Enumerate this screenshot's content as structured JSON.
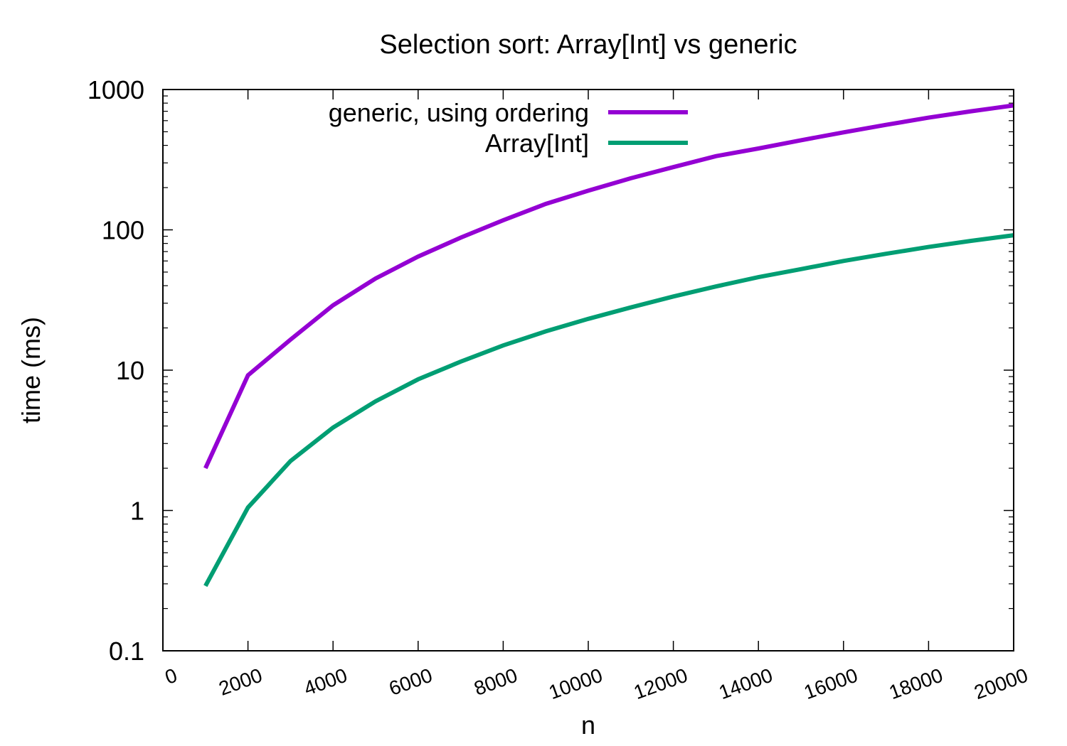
{
  "chart_data": {
    "type": "line",
    "title": "Selection sort: Array[Int] vs generic",
    "xlabel": "n",
    "ylabel": "time (ms)",
    "xlim": [
      0,
      20000
    ],
    "ylim": [
      0.1,
      1000
    ],
    "yscale": "log",
    "grid": false,
    "legend_position": "top-center",
    "xticks": [
      "0",
      "2000",
      "4000",
      "6000",
      "8000",
      "10000",
      "12000",
      "14000",
      "16000",
      "18000",
      "20000"
    ],
    "yticks": [
      "0.1",
      "1",
      "10",
      "100",
      "1000"
    ],
    "series": [
      {
        "name": "generic, using ordering",
        "color": "#9400d3",
        "x": [
          1000,
          2000,
          3000,
          4000,
          5000,
          6000,
          7000,
          8000,
          9000,
          10000,
          11000,
          12000,
          13000,
          14000,
          15000,
          16000,
          17000,
          18000,
          19000,
          20000
        ],
        "y": [
          2.0,
          9.2,
          16.5,
          29.0,
          45.0,
          64.5,
          88.0,
          117,
          153,
          190,
          233,
          280,
          335,
          380,
          435,
          495,
          560,
          630,
          700,
          770
        ]
      },
      {
        "name": "Array[Int]",
        "color": "#009e73",
        "x": [
          1000,
          2000,
          3000,
          4000,
          5000,
          6000,
          7000,
          8000,
          9000,
          10000,
          11000,
          12000,
          13000,
          14000,
          15000,
          16000,
          17000,
          18000,
          19000,
          20000
        ],
        "y": [
          0.29,
          1.05,
          2.25,
          3.9,
          6.0,
          8.6,
          11.5,
          15.0,
          18.9,
          23.2,
          28.0,
          33.5,
          39.5,
          46.0,
          52.5,
          60.0,
          67.5,
          75.5,
          83.5,
          91.5
        ]
      }
    ]
  }
}
